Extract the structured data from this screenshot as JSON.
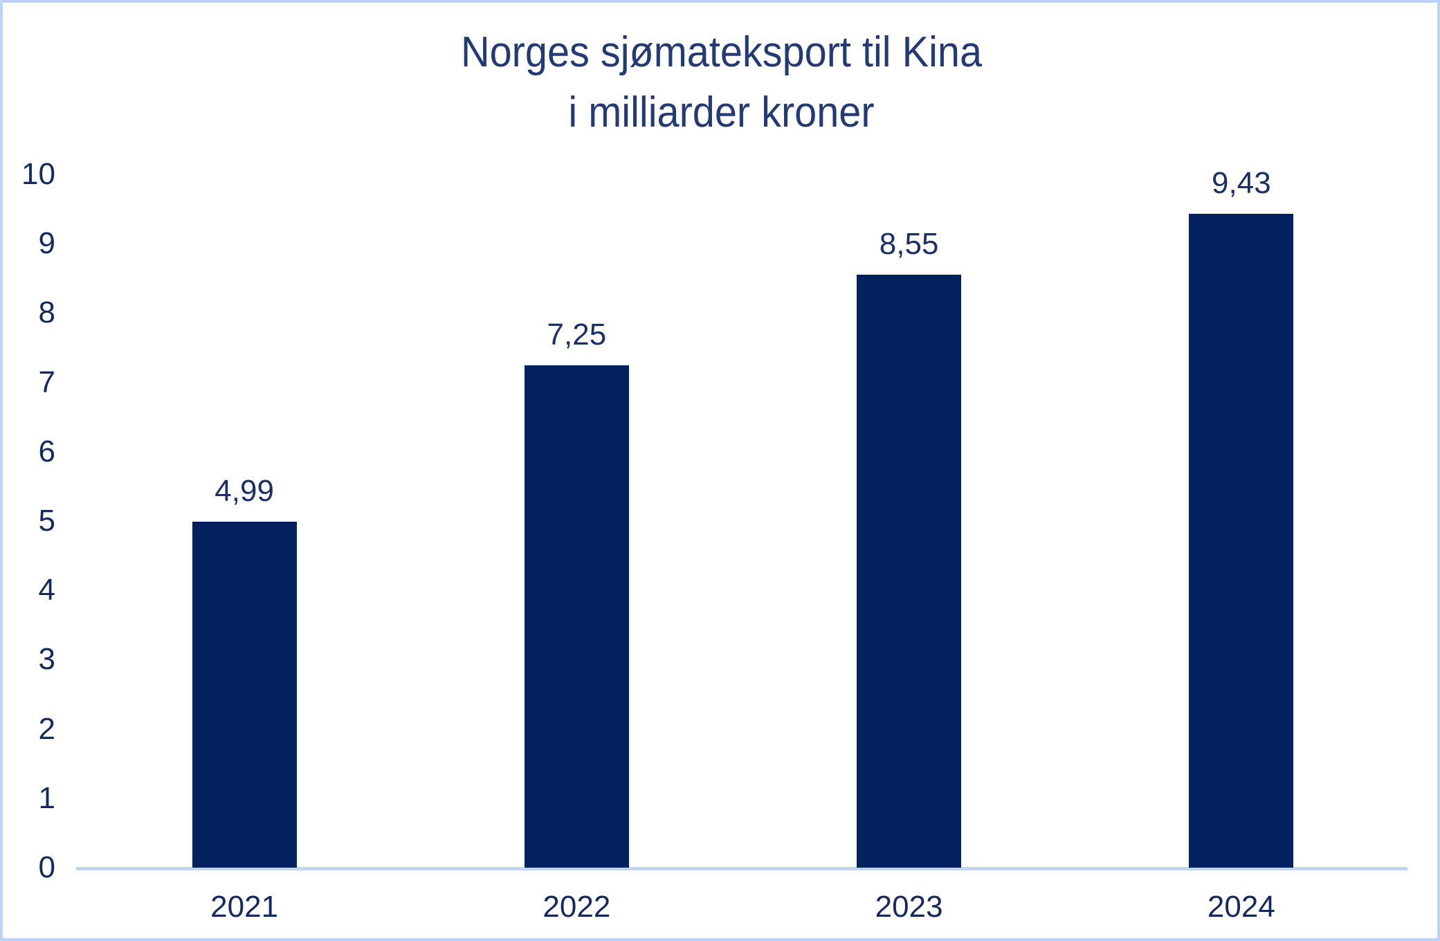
{
  "title": {
    "line1": "Norges sjømateksport til Kina",
    "line2": "i milliarder kroner"
  },
  "chart_data": {
    "type": "bar",
    "title": "Norges sjømateksport til Kina i milliarder kroner",
    "categories": [
      "2021",
      "2022",
      "2023",
      "2024"
    ],
    "values": [
      4.99,
      7.25,
      8.55,
      9.43
    ],
    "value_labels": [
      "4,99",
      "7,25",
      "8,55",
      "9,43"
    ],
    "series_name": "Norges sjømateksport til Kina (milliarder kroner)",
    "xlabel": "",
    "ylabel": "",
    "ylim": [
      0,
      10
    ],
    "yticks": [
      0,
      1,
      2,
      3,
      4,
      5,
      6,
      7,
      8,
      9,
      10
    ],
    "grid": false,
    "legend": false,
    "decimal_separator": ",",
    "bar_color": "#03215f",
    "text_color": "#16295e",
    "title_color": "#243a74",
    "axis_line_color": "#c3d4f2",
    "frame_border_color": "#bed1f8",
    "background_color": "#ffffff"
  }
}
